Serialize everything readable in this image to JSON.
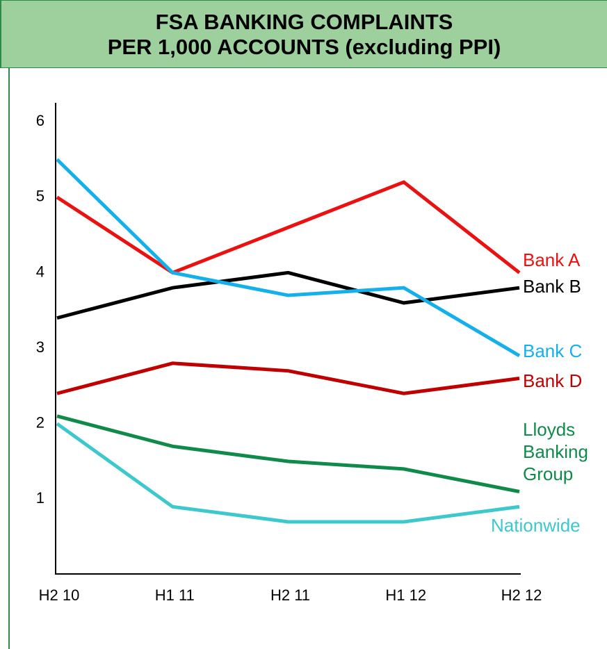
{
  "chart_data": {
    "type": "line",
    "title": [
      "FSA BANKING COMPLAINTS",
      "PER 1,000 ACCOUNTS (excluding PPI)"
    ],
    "categories": [
      "H2 10",
      "H1 11",
      "H2 11",
      "H1 12",
      "H2 12"
    ],
    "series": [
      {
        "name": "Bank A",
        "color": "#ec1111",
        "values": [
          5.0,
          4.0,
          4.6,
          5.2,
          4.0
        ]
      },
      {
        "name": "Bank B",
        "color": "#000000",
        "values": [
          3.4,
          3.8,
          4.0,
          3.6,
          3.8
        ]
      },
      {
        "name": "Bank C",
        "color": "#13b0ec",
        "values": [
          5.5,
          4.0,
          3.7,
          3.8,
          2.9
        ]
      },
      {
        "name": "Bank D",
        "color": "#c00000",
        "values": [
          2.4,
          2.8,
          2.7,
          2.4,
          2.6
        ]
      },
      {
        "name": "Lloyds Banking Group",
        "color": "#0f8a4a",
        "values": [
          2.1,
          1.7,
          1.5,
          1.4,
          1.1
        ]
      },
      {
        "name": "Nationwide",
        "color": "#3cc8cc",
        "values": [
          2.0,
          0.9,
          0.7,
          0.7,
          0.9
        ]
      }
    ],
    "ylim": [
      0,
      6.25
    ],
    "yticks": [
      1,
      2,
      3,
      4,
      5,
      6
    ],
    "grid": false
  }
}
